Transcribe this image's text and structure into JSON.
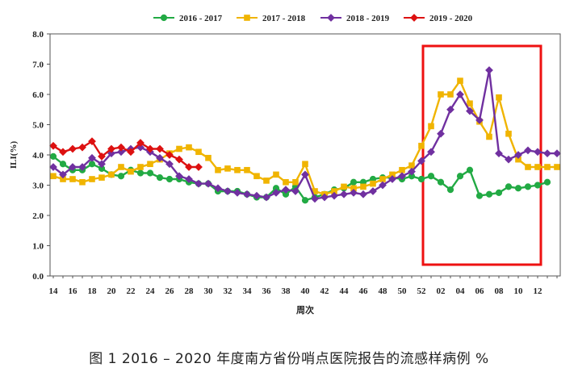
{
  "caption": "图 1 2016 – 2020 年度南方省份哨点医院报告的流感样病例 %",
  "chart_data": {
    "type": "line",
    "xlabel": "周次",
    "ylabel": "ILI(%)",
    "ylim": [
      0,
      8
    ],
    "y_ticks": [
      "0.0",
      "1.0",
      "2.0",
      "3.0",
      "4.0",
      "5.0",
      "6.0",
      "7.0",
      "8.0"
    ],
    "x_tick_labels": [
      "14",
      "16",
      "18",
      "20",
      "22",
      "24",
      "26",
      "28",
      "30",
      "32",
      "34",
      "36",
      "38",
      "40",
      "42",
      "44",
      "46",
      "48",
      "50",
      "52",
      "02",
      "04",
      "06",
      "08",
      "10",
      "12"
    ],
    "x_positions_count": 53,
    "legend_position": "top",
    "highlight_box": {
      "x_start": 38.5,
      "x_end": 50.5,
      "color": "#ee1111"
    },
    "series": [
      {
        "name": "2016 - 2017",
        "color": "#22aa44",
        "marker": "circle",
        "values": [
          3.95,
          3.7,
          3.5,
          3.5,
          3.7,
          3.55,
          3.35,
          3.3,
          3.5,
          3.4,
          3.4,
          3.25,
          3.2,
          3.2,
          3.1,
          3.05,
          3.05,
          2.8,
          2.8,
          2.8,
          2.7,
          2.6,
          2.6,
          2.9,
          2.7,
          2.95,
          2.5,
          2.6,
          2.7,
          2.85,
          2.9,
          3.1,
          3.1,
          3.2,
          3.25,
          3.25,
          3.2,
          3.3,
          3.2,
          3.3,
          3.1,
          2.85,
          3.3,
          3.5,
          2.65,
          2.7,
          2.75,
          2.95,
          2.9,
          2.95,
          3.0,
          3.1
        ]
      },
      {
        "name": "2017 - 2018",
        "color": "#f0b400",
        "marker": "square",
        "values": [
          3.3,
          3.2,
          3.2,
          3.1,
          3.2,
          3.25,
          3.35,
          3.6,
          3.45,
          3.6,
          3.7,
          3.85,
          4.05,
          4.2,
          4.25,
          4.1,
          3.9,
          3.5,
          3.55,
          3.5,
          3.5,
          3.3,
          3.15,
          3.35,
          3.1,
          3.1,
          3.7,
          2.8,
          2.7,
          2.8,
          2.95,
          2.9,
          2.95,
          3.05,
          3.2,
          3.35,
          3.5,
          3.65,
          4.3,
          4.95,
          6.0,
          6.0,
          6.45,
          5.7,
          5.1,
          4.6,
          5.9,
          4.7,
          3.85,
          3.6,
          3.6,
          3.6,
          3.6
        ]
      },
      {
        "name": "2018 - 2019",
        "color": "#7030a0",
        "marker": "diamond",
        "values": [
          3.6,
          3.35,
          3.6,
          3.6,
          3.9,
          3.7,
          4.05,
          4.1,
          4.2,
          4.25,
          4.1,
          3.9,
          3.7,
          3.3,
          3.2,
          3.05,
          3.05,
          2.9,
          2.8,
          2.75,
          2.7,
          2.65,
          2.6,
          2.75,
          2.85,
          2.8,
          3.35,
          2.55,
          2.6,
          2.65,
          2.7,
          2.75,
          2.7,
          2.8,
          3.0,
          3.2,
          3.3,
          3.45,
          3.8,
          4.1,
          4.7,
          5.5,
          6.0,
          5.45,
          5.15,
          6.8,
          4.05,
          3.85,
          4.0,
          4.15,
          4.1,
          4.05,
          4.05
        ]
      },
      {
        "name": "2019 - 2020",
        "color": "#dd1111",
        "marker": "diamond",
        "values": [
          4.3,
          4.1,
          4.2,
          4.25,
          4.45,
          3.95,
          4.2,
          4.25,
          4.1,
          4.4,
          4.2,
          4.2,
          4.0,
          3.85,
          3.6,
          3.6
        ]
      }
    ]
  }
}
